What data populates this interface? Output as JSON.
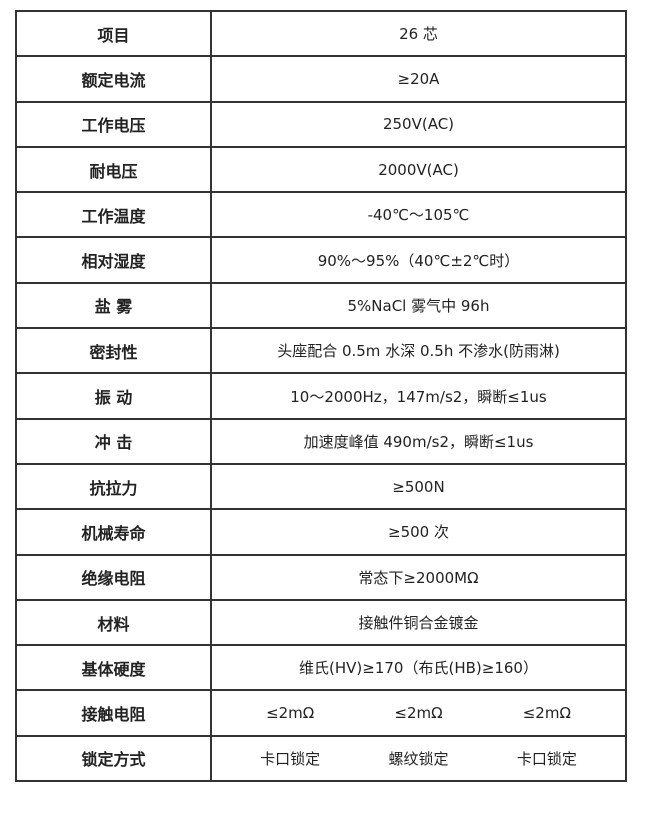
{
  "rows": [
    {
      "label": "项目",
      "value": "26 芯"
    },
    {
      "label": "额定电流",
      "value": "≥20A"
    },
    {
      "label": "工作电压",
      "value": "250V(AC)"
    },
    {
      "label": "耐电压",
      "value": "2000V(AC)"
    },
    {
      "label": "工作温度",
      "value": "-40℃～105℃"
    },
    {
      "label": "相对湿度",
      "value": "90%～95%（40℃±2℃时）"
    },
    {
      "label": "盐 雾",
      "value": "5%NaCl 雾气中 96h"
    },
    {
      "label": "密封性",
      "value": "头座配合 0.5m 水深 0.5h 不渗水(防雨淋)"
    },
    {
      "label": "振 动",
      "value": "10～2000Hz，147m/s2，瞬断≤1us"
    },
    {
      "label": "冲 击",
      "value": "加速度峰值 490m/s2，瞬断≤1us"
    },
    {
      "label": "抗拉力",
      "value": "≥500N"
    },
    {
      "label": "机械寿命",
      "value": "≥500 次"
    },
    {
      "label": "绝缘电阻",
      "value": "常态下≥2000MΩ"
    },
    {
      "label": "材料",
      "value": "接触件铜合金镀金"
    },
    {
      "label": "基体硬度",
      "value": "维氏(HV)≥170（布氏(HB)≥160）"
    }
  ],
  "contact_resistance": {
    "label": "接触电阻",
    "values": [
      "≤2mΩ",
      "≤2mΩ",
      "≤2mΩ"
    ]
  },
  "locking": {
    "label": "锁定方式",
    "values": [
      "卡口锁定",
      "螺纹锁定",
      "卡口锁定"
    ]
  }
}
